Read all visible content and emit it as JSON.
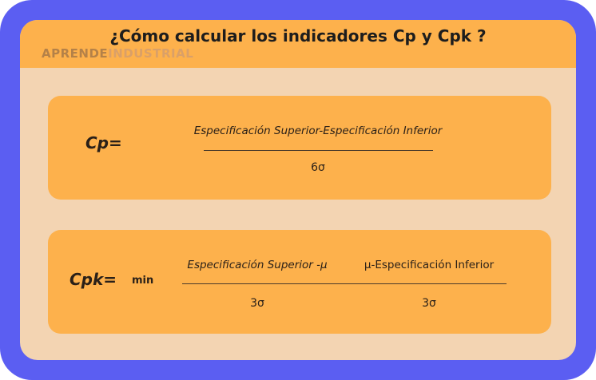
{
  "header": {
    "title": "¿Cómo calcular los indicadores Cp y Cpk ?",
    "watermark": [
      "APRENDE",
      "INDUSTRIAL"
    ]
  },
  "cp": {
    "label": "Cp=",
    "numerator": "Especificación Superior-Especificación Inferior",
    "denominator": "6σ"
  },
  "cpk": {
    "label": "Cpk=",
    "operator": "min",
    "terms": [
      {
        "numerator": "Especificación Superior -μ",
        "denominator": "3σ"
      },
      {
        "numerator": "μ-Especificación Inferior",
        "denominator": "3σ"
      }
    ]
  }
}
